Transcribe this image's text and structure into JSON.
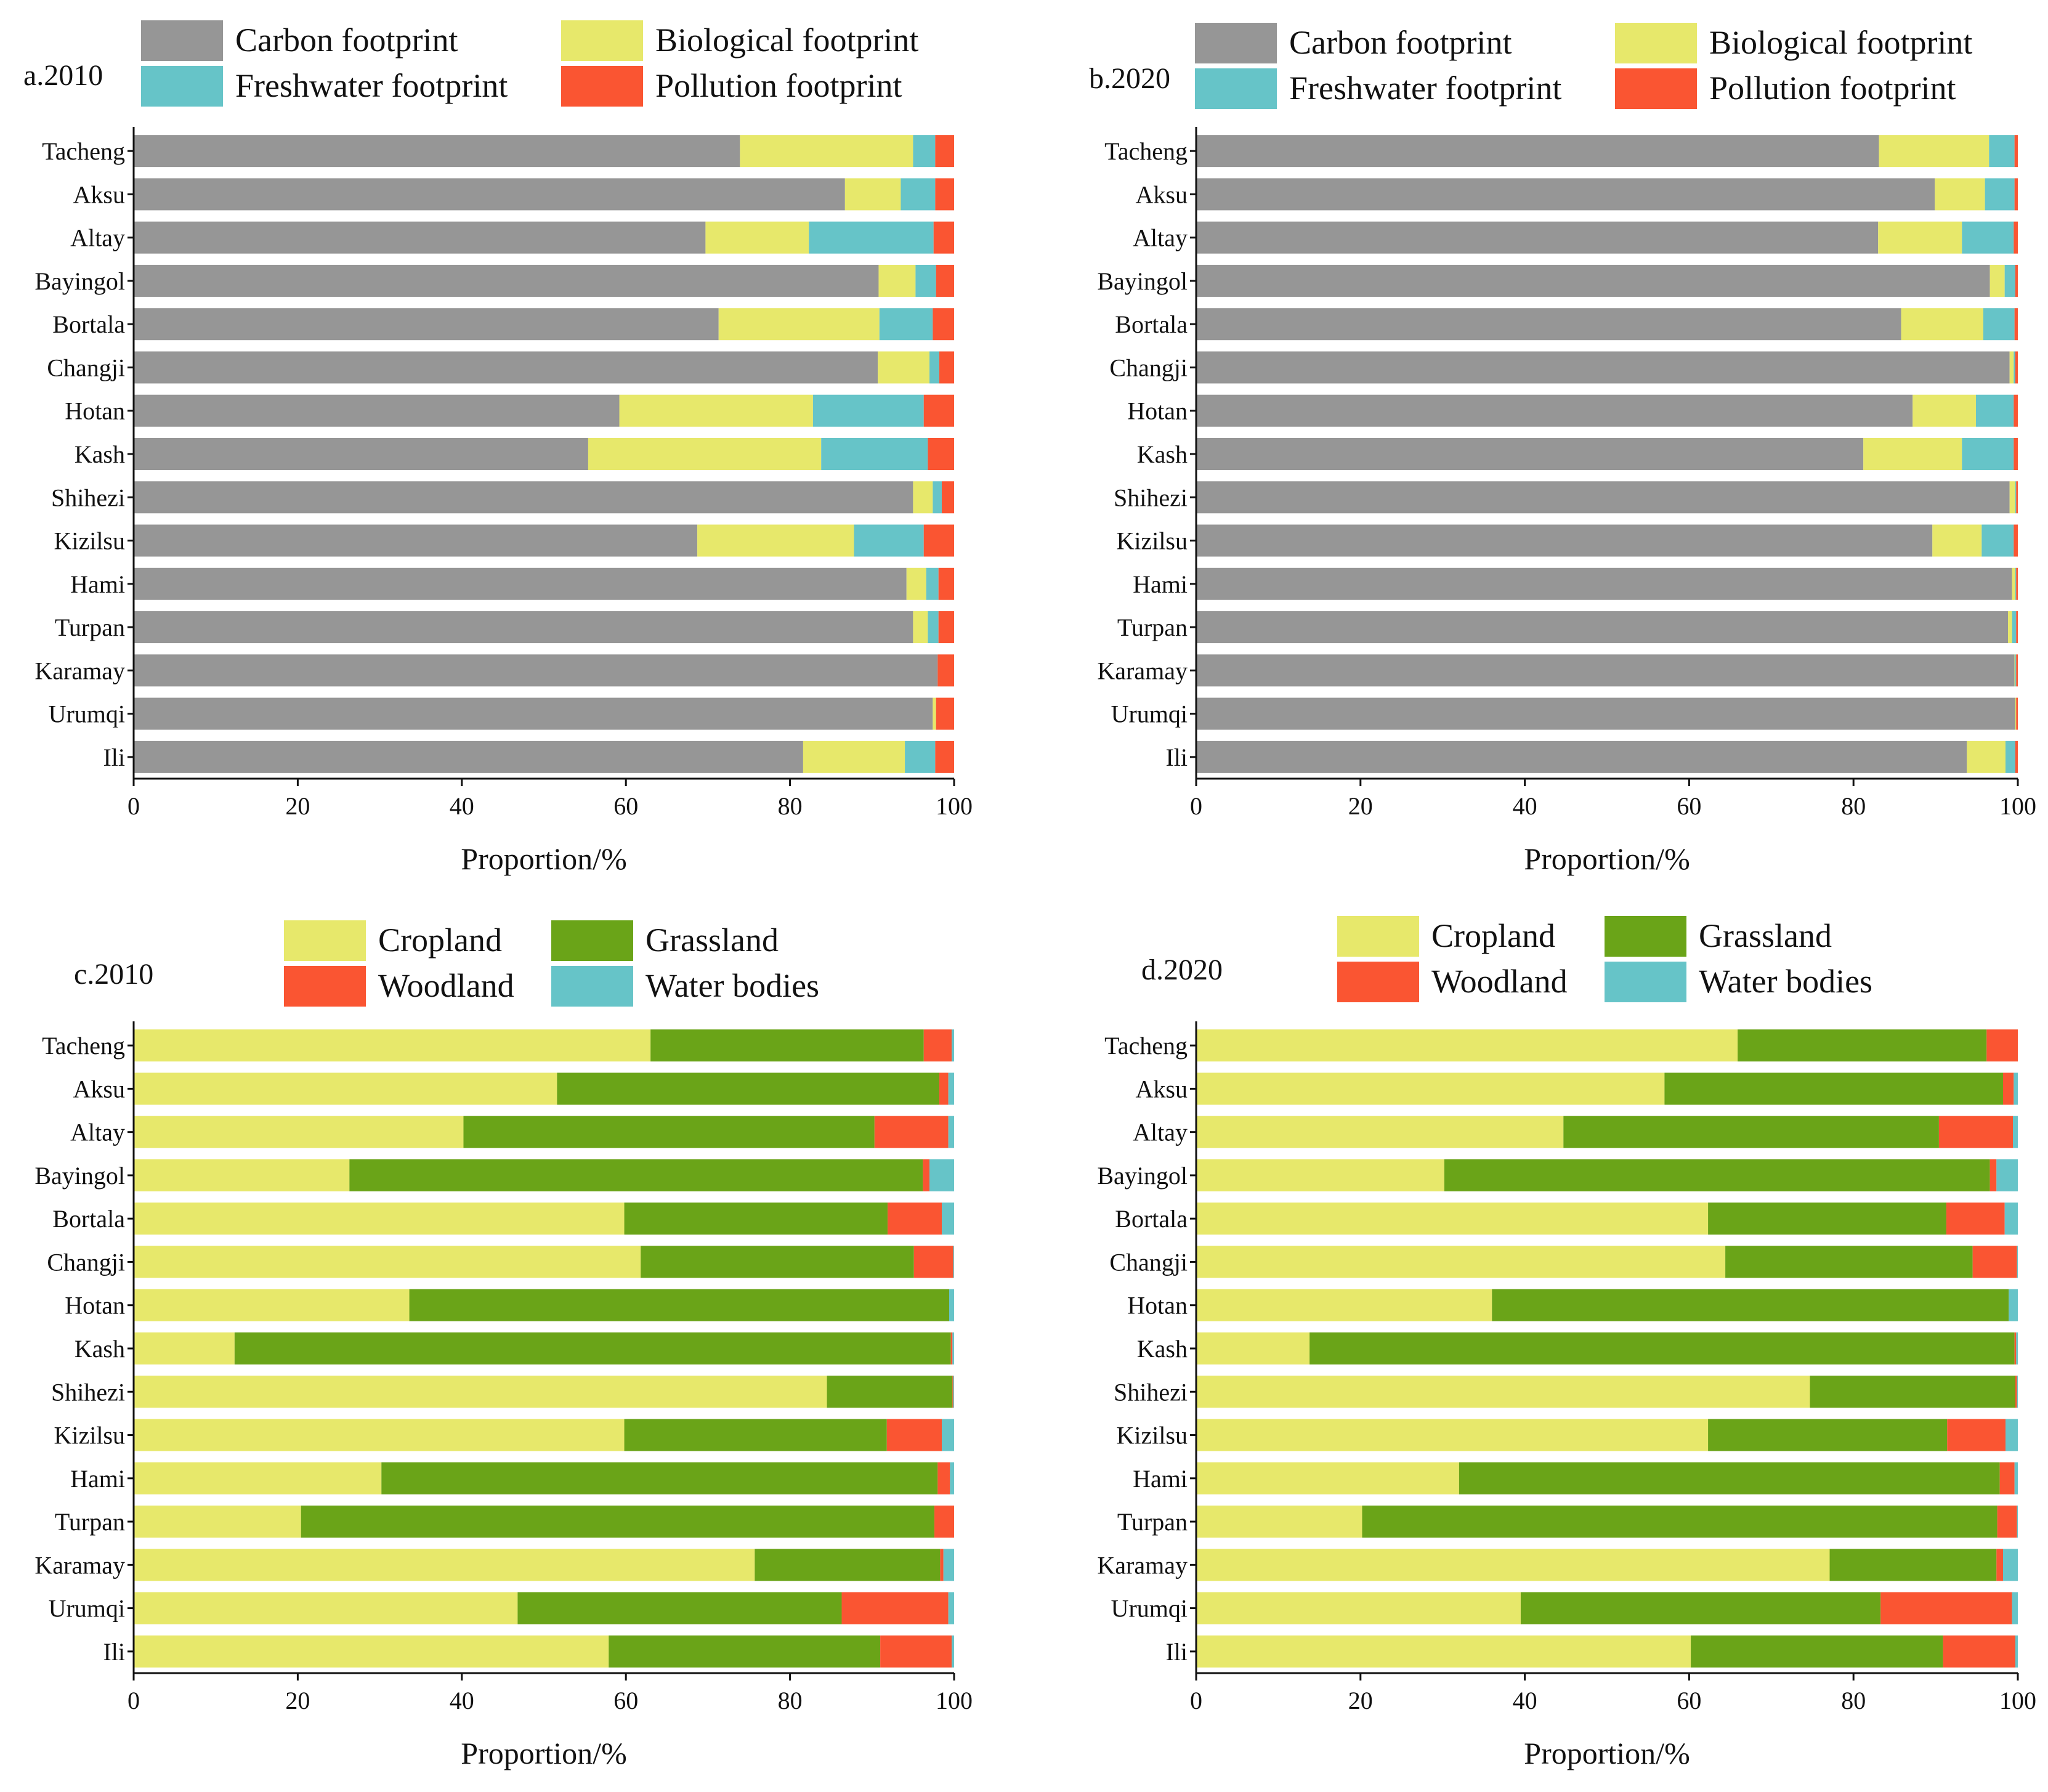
{
  "colors": {
    "carbon": "#969696",
    "biological": "#e7e86b",
    "freshwater": "#66c4c8",
    "pollution": "#fa5532",
    "cropland": "#e7e86b",
    "grassland": "#6aa418",
    "woodland": "#fa5532",
    "water": "#66c4c8"
  },
  "chart_data": [
    {
      "type": "bar",
      "orientation": "horizontal",
      "stacked": true,
      "title": "a.2010",
      "xlabel": "Proportion/%",
      "ylabel": "",
      "xlim": [
        0,
        100
      ],
      "xticks": [
        "0",
        "20",
        "40",
        "60",
        "80",
        "100"
      ],
      "categories": [
        "Tacheng",
        "Aksu",
        "Altay",
        "Bayingol",
        "Bortala",
        "Changji",
        "Hotan",
        "Kash",
        "Shihezi",
        "Kizilsu",
        "Hami",
        "Turpan",
        "Karamay",
        "Urumqi",
        "Ili"
      ],
      "series": [
        {
          "name": "Carbon footprint",
          "color": "carbon",
          "values": [
            73.9,
            86.7,
            69.7,
            90.8,
            71.3,
            90.7,
            59.2,
            55.4,
            95.0,
            68.7,
            94.2,
            95.0,
            98.0,
            97.4,
            81.6
          ]
        },
        {
          "name": "Biological footprint",
          "color": "biological",
          "values": [
            21.1,
            6.8,
            12.6,
            4.5,
            19.6,
            6.3,
            23.6,
            28.4,
            2.4,
            19.1,
            2.4,
            1.8,
            0.0,
            0.4,
            12.4
          ]
        },
        {
          "name": "Freshwater footprint",
          "color": "freshwater",
          "values": [
            2.7,
            4.2,
            15.2,
            2.5,
            6.5,
            1.2,
            13.5,
            13.0,
            1.1,
            8.5,
            1.5,
            1.3,
            0.0,
            0.0,
            3.7
          ]
        },
        {
          "name": "Pollution footprint",
          "color": "pollution",
          "values": [
            2.3,
            2.3,
            2.5,
            2.2,
            2.6,
            1.8,
            3.7,
            3.2,
            1.5,
            3.7,
            1.9,
            1.9,
            2.0,
            2.2,
            2.3
          ]
        }
      ],
      "legend": {
        "columns": 2,
        "placement": "top"
      }
    },
    {
      "type": "bar",
      "orientation": "horizontal",
      "stacked": true,
      "title": "b.2020",
      "xlabel": "Proportion/%",
      "ylabel": "",
      "xlim": [
        0,
        100
      ],
      "xticks": [
        "0",
        "20",
        "40",
        "60",
        "80",
        "100"
      ],
      "categories": [
        "Tacheng",
        "Aksu",
        "Altay",
        "Bayingol",
        "Bortala",
        "Changji",
        "Hotan",
        "Kash",
        "Shihezi",
        "Kizilsu",
        "Hami",
        "Turpan",
        "Karamay",
        "Urumqi",
        "Ili"
      ],
      "series": [
        {
          "name": "Carbon footprint",
          "color": "carbon",
          "values": [
            83.1,
            89.9,
            83.0,
            96.6,
            85.8,
            99.0,
            87.2,
            81.2,
            99.0,
            89.6,
            99.3,
            98.8,
            99.6,
            99.7,
            93.8
          ]
        },
        {
          "name": "Biological footprint",
          "color": "biological",
          "values": [
            13.4,
            6.1,
            10.2,
            1.8,
            10.0,
            0.5,
            7.7,
            12.0,
            0.7,
            6.0,
            0.4,
            0.5,
            0.1,
            0.1,
            4.7
          ]
        },
        {
          "name": "Freshwater footprint",
          "color": "freshwater",
          "values": [
            3.1,
            3.6,
            6.3,
            1.3,
            3.8,
            0.2,
            4.6,
            6.3,
            0.1,
            3.9,
            0.1,
            0.5,
            0.1,
            0.0,
            1.2
          ]
        },
        {
          "name": "Pollution footprint",
          "color": "pollution",
          "values": [
            0.4,
            0.4,
            0.5,
            0.3,
            0.4,
            0.3,
            0.5,
            0.5,
            0.2,
            0.5,
            0.2,
            0.2,
            0.2,
            0.2,
            0.3
          ]
        }
      ],
      "legend": {
        "columns": 2,
        "placement": "top"
      }
    },
    {
      "type": "bar",
      "orientation": "horizontal",
      "stacked": true,
      "title": "c.2010",
      "xlabel": "Proportion/%",
      "ylabel": "",
      "xlim": [
        0,
        100
      ],
      "xticks": [
        "0",
        "20",
        "40",
        "60",
        "80",
        "100"
      ],
      "categories": [
        "Tacheng",
        "Aksu",
        "Altay",
        "Bayingol",
        "Bortala",
        "Changji",
        "Hotan",
        "Kash",
        "Shihezi",
        "Kizilsu",
        "Hami",
        "Turpan",
        "Karamay",
        "Urumqi",
        "Ili"
      ],
      "series": [
        {
          "name": "Cropland",
          "color": "cropland",
          "values": [
            63.0,
            51.6,
            40.2,
            26.3,
            59.8,
            61.8,
            33.6,
            12.3,
            84.5,
            59.8,
            30.2,
            20.4,
            75.7,
            46.8,
            57.9
          ]
        },
        {
          "name": "Grassland",
          "color": "grassland",
          "values": [
            33.3,
            46.6,
            50.1,
            69.9,
            32.1,
            33.3,
            65.8,
            87.3,
            15.3,
            32.0,
            67.8,
            77.2,
            22.6,
            39.5,
            33.1
          ]
        },
        {
          "name": "Woodland",
          "color": "woodland",
          "values": [
            3.4,
            1.1,
            9.0,
            0.8,
            6.6,
            4.8,
            0.0,
            0.2,
            0.1,
            6.7,
            1.5,
            2.4,
            0.4,
            13.0,
            8.7
          ]
        },
        {
          "name": "Water bodies",
          "color": "water",
          "values": [
            0.3,
            0.7,
            0.7,
            3.0,
            1.5,
            0.1,
            0.6,
            0.2,
            0.1,
            1.5,
            0.5,
            0.0,
            1.3,
            0.7,
            0.3
          ]
        }
      ],
      "legend": {
        "columns": 2,
        "placement": "top"
      }
    },
    {
      "type": "bar",
      "orientation": "horizontal",
      "stacked": true,
      "title": "d.2020",
      "xlabel": "Proportion/%",
      "ylabel": "",
      "xlim": [
        0,
        100
      ],
      "xticks": [
        "0",
        "20",
        "40",
        "60",
        "80",
        "100"
      ],
      "categories": [
        "Tacheng",
        "Aksu",
        "Altay",
        "Bayingol",
        "Bortala",
        "Changji",
        "Hotan",
        "Kash",
        "Shihezi",
        "Kizilsu",
        "Hami",
        "Turpan",
        "Karamay",
        "Urumqi",
        "Ili"
      ],
      "series": [
        {
          "name": "Cropland",
          "color": "cropland",
          "values": [
            65.9,
            57.0,
            44.7,
            30.2,
            62.3,
            64.4,
            36.0,
            13.8,
            74.7,
            62.3,
            32.0,
            20.2,
            77.1,
            39.5,
            60.2
          ]
        },
        {
          "name": "Grassland",
          "color": "grassland",
          "values": [
            30.3,
            41.2,
            45.7,
            66.4,
            29.0,
            30.1,
            62.9,
            85.8,
            25.0,
            29.1,
            65.8,
            77.3,
            20.3,
            43.8,
            30.7
          ]
        },
        {
          "name": "Woodland",
          "color": "woodland",
          "values": [
            3.8,
            1.3,
            9.0,
            0.8,
            7.1,
            5.4,
            0.0,
            0.2,
            0.2,
            7.1,
            1.8,
            2.4,
            0.8,
            16.0,
            8.8
          ]
        },
        {
          "name": "Water bodies",
          "color": "water",
          "values": [
            0.0,
            0.5,
            0.6,
            2.6,
            1.6,
            0.1,
            1.1,
            0.2,
            0.1,
            1.5,
            0.4,
            0.1,
            1.8,
            0.7,
            0.3
          ]
        }
      ],
      "legend": {
        "columns": 2,
        "placement": "top"
      }
    }
  ]
}
